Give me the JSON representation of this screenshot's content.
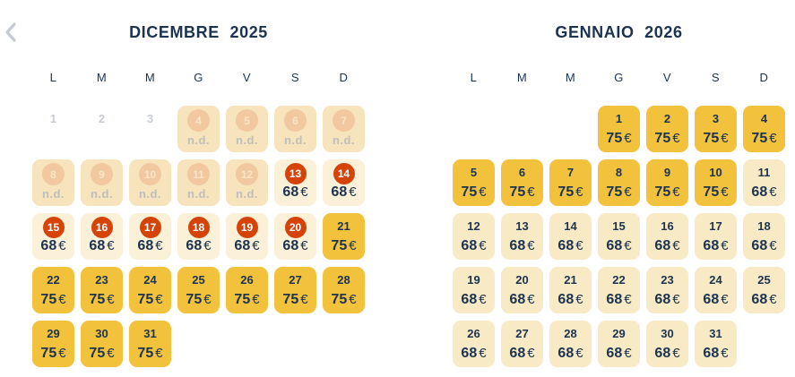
{
  "labels": {
    "not_available": "n.d.",
    "currency": "€"
  },
  "nav": {
    "prev_icon": "chevron-left"
  },
  "colors": {
    "background": "#FFFFFF",
    "navy": "#1B3350",
    "yellow": "#F2C23D",
    "cream": "#F8EAC5",
    "offer_bg": "#FBF0D8",
    "nd_bg": "#F7E3BC",
    "nd_circle": "#F1C89F",
    "nd_circle_num": "#F9E6C8",
    "nd_label": "#BFBEBC",
    "red": "#D64307",
    "disabled_num": "#C7CBD2",
    "chevron": "#C5CBD3"
  },
  "months": [
    {
      "title": "DICEMBRE 2025",
      "weekdays": [
        "L",
        "M",
        "M",
        "G",
        "V",
        "S",
        "D"
      ],
      "weeks": [
        [
          {
            "d": "1",
            "kind": "disabled"
          },
          {
            "d": "2",
            "kind": "disabled"
          },
          {
            "d": "3",
            "kind": "disabled"
          },
          {
            "d": "4",
            "kind": "nd"
          },
          {
            "d": "5",
            "kind": "nd"
          },
          {
            "d": "6",
            "kind": "nd"
          },
          {
            "d": "7",
            "kind": "nd"
          }
        ],
        [
          {
            "d": "8",
            "kind": "nd"
          },
          {
            "d": "9",
            "kind": "nd"
          },
          {
            "d": "10",
            "kind": "nd"
          },
          {
            "d": "11",
            "kind": "nd"
          },
          {
            "d": "12",
            "kind": "nd"
          },
          {
            "d": "13",
            "kind": "offer",
            "price": "68"
          },
          {
            "d": "14",
            "kind": "offer",
            "price": "68"
          }
        ],
        [
          {
            "d": "15",
            "kind": "offer",
            "price": "68"
          },
          {
            "d": "16",
            "kind": "offer",
            "price": "68"
          },
          {
            "d": "17",
            "kind": "offer",
            "price": "68"
          },
          {
            "d": "18",
            "kind": "offer",
            "price": "68"
          },
          {
            "d": "19",
            "kind": "offer",
            "price": "68"
          },
          {
            "d": "20",
            "kind": "offer",
            "price": "68"
          },
          {
            "d": "21",
            "kind": "high",
            "price": "75"
          }
        ],
        [
          {
            "d": "22",
            "kind": "high",
            "price": "75"
          },
          {
            "d": "23",
            "kind": "high",
            "price": "75"
          },
          {
            "d": "24",
            "kind": "high",
            "price": "75"
          },
          {
            "d": "25",
            "kind": "high",
            "price": "75"
          },
          {
            "d": "26",
            "kind": "high",
            "price": "75"
          },
          {
            "d": "27",
            "kind": "high",
            "price": "75"
          },
          {
            "d": "28",
            "kind": "high",
            "price": "75"
          }
        ],
        [
          {
            "d": "29",
            "kind": "high",
            "price": "75"
          },
          {
            "d": "30",
            "kind": "high",
            "price": "75"
          },
          {
            "d": "31",
            "kind": "high",
            "price": "75"
          },
          {
            "kind": "empty"
          },
          {
            "kind": "empty"
          },
          {
            "kind": "empty"
          },
          {
            "kind": "empty"
          }
        ]
      ]
    },
    {
      "title": "GENNAIO 2026",
      "weekdays": [
        "L",
        "M",
        "M",
        "G",
        "V",
        "S",
        "D"
      ],
      "weeks": [
        [
          {
            "kind": "empty"
          },
          {
            "kind": "empty"
          },
          {
            "kind": "empty"
          },
          {
            "d": "1",
            "kind": "high",
            "price": "75"
          },
          {
            "d": "2",
            "kind": "high",
            "price": "75"
          },
          {
            "d": "3",
            "kind": "high",
            "price": "75"
          },
          {
            "d": "4",
            "kind": "high",
            "price": "75"
          }
        ],
        [
          {
            "d": "5",
            "kind": "high",
            "price": "75"
          },
          {
            "d": "6",
            "kind": "high",
            "price": "75"
          },
          {
            "d": "7",
            "kind": "high",
            "price": "75"
          },
          {
            "d": "8",
            "kind": "high",
            "price": "75"
          },
          {
            "d": "9",
            "kind": "high",
            "price": "75"
          },
          {
            "d": "10",
            "kind": "high",
            "price": "75"
          },
          {
            "d": "11",
            "kind": "low",
            "price": "68"
          }
        ],
        [
          {
            "d": "12",
            "kind": "low",
            "price": "68"
          },
          {
            "d": "13",
            "kind": "low",
            "price": "68"
          },
          {
            "d": "14",
            "kind": "low",
            "price": "68"
          },
          {
            "d": "15",
            "kind": "low",
            "price": "68"
          },
          {
            "d": "16",
            "kind": "low",
            "price": "68"
          },
          {
            "d": "17",
            "kind": "low",
            "price": "68"
          },
          {
            "d": "18",
            "kind": "low",
            "price": "68"
          }
        ],
        [
          {
            "d": "19",
            "kind": "low",
            "price": "68"
          },
          {
            "d": "20",
            "kind": "low",
            "price": "68"
          },
          {
            "d": "21",
            "kind": "low",
            "price": "68"
          },
          {
            "d": "22",
            "kind": "low",
            "price": "68"
          },
          {
            "d": "23",
            "kind": "low",
            "price": "68"
          },
          {
            "d": "24",
            "kind": "low",
            "price": "68"
          },
          {
            "d": "25",
            "kind": "low",
            "price": "68"
          }
        ],
        [
          {
            "d": "26",
            "kind": "low",
            "price": "68"
          },
          {
            "d": "27",
            "kind": "low",
            "price": "68"
          },
          {
            "d": "28",
            "kind": "low",
            "price": "68"
          },
          {
            "d": "29",
            "kind": "low",
            "price": "68"
          },
          {
            "d": "30",
            "kind": "low",
            "price": "68"
          },
          {
            "d": "31",
            "kind": "low",
            "price": "68"
          },
          {
            "kind": "empty"
          }
        ]
      ]
    }
  ]
}
